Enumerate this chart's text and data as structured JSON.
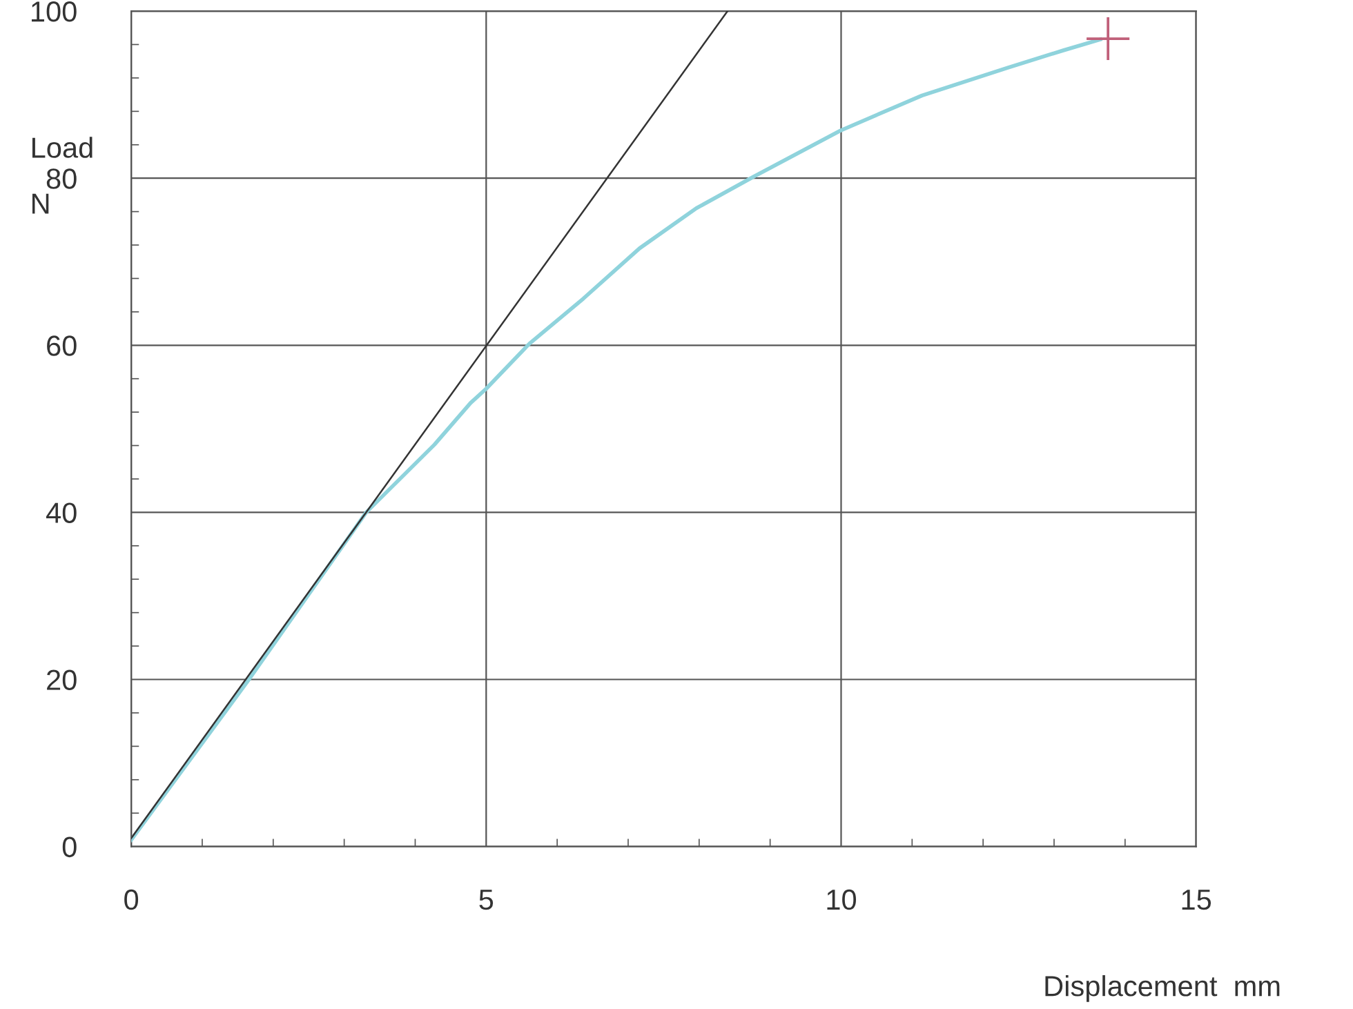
{
  "chart_data": {
    "type": "line",
    "xlabel": "Displacement  mm",
    "ylabel": "Load\nN",
    "xlim": [
      0,
      15
    ],
    "ylim": [
      0,
      100
    ],
    "xticks": [
      0,
      5,
      10,
      15
    ],
    "yticks": [
      0,
      20,
      40,
      60,
      80,
      100
    ],
    "grid": true,
    "marker": "none",
    "series": [
      {
        "color": "#8fd3dc",
        "x": [
          0,
          1.65,
          3.31,
          4.27,
          4.78,
          5.0,
          5.61,
          6.37,
          7.16,
          7.96,
          8.75,
          9.99,
          11.14,
          12.34,
          13.13,
          13.65
        ],
        "values": [
          0.8,
          19.9,
          40,
          48.1,
          53.1,
          54.8,
          60.2,
          65.6,
          71.6,
          76.4,
          80.1,
          85.7,
          89.9,
          93.2,
          95.3,
          96.6
        ]
      },
      {
        "color": "#333333",
        "x": [
          0,
          8.4
        ],
        "values": [
          1,
          100
        ]
      },
      {
        "type": "scatter",
        "marker": "cross",
        "color": "#c0607a",
        "x": [
          13.76
        ],
        "values": [
          96.7
        ]
      }
    ]
  }
}
